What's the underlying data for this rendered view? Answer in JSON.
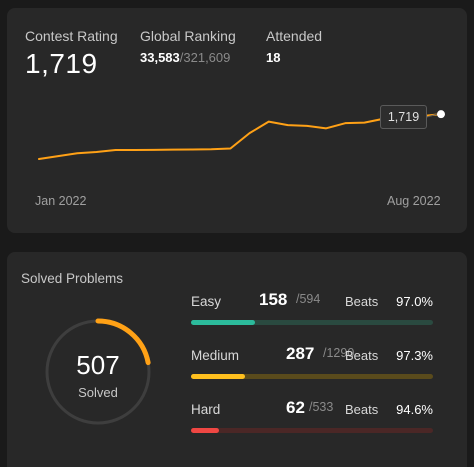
{
  "contest": {
    "rating_label": "Contest Rating",
    "rating_value": "1,719",
    "ranking_label": "Global Ranking",
    "ranking_value": "33,583",
    "ranking_total": "/321,609",
    "attended_label": "Attended",
    "attended_value": "18",
    "tooltip_value": "1,719"
  },
  "chart_data": {
    "type": "line",
    "x_labels": [
      "Jan 2022",
      "Aug 2022"
    ],
    "values": [
      1485,
      1500,
      1515,
      1522,
      1532,
      1532,
      1533,
      1534,
      1535,
      1536,
      1540,
      1620,
      1680,
      1662,
      1658,
      1645,
      1672,
      1675,
      1695,
      1700,
      1709,
      1719
    ],
    "series_color": "#ffa116"
  },
  "solved": {
    "title": "Solved Problems",
    "total": "507",
    "total_label": "Solved",
    "ring_fraction": 0.22,
    "ring_color": "#ffa116",
    "beats_label": "Beats",
    "rows": [
      {
        "name": "Easy",
        "solved": "158",
        "total": "/594",
        "beats": "97.0%",
        "fraction": 0.266,
        "color": "#2cbb9c",
        "track": "#2a4a40"
      },
      {
        "name": "Medium",
        "solved": "287",
        "total": "/1290",
        "beats": "97.3%",
        "fraction": 0.222,
        "color": "#ffc01e",
        "track": "#5a4b1c"
      },
      {
        "name": "Hard",
        "solved": "62",
        "total": "/533",
        "beats": "94.6%",
        "fraction": 0.116,
        "color": "#ef4743",
        "track": "#4b2726"
      }
    ]
  }
}
